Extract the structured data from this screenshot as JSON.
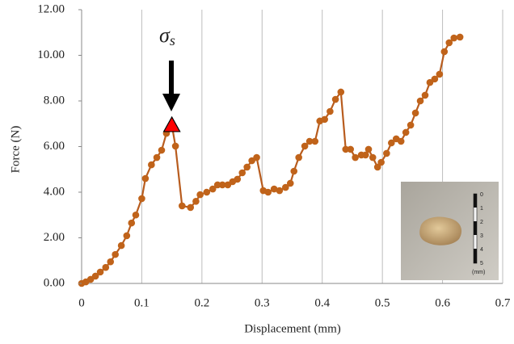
{
  "chart_data": {
    "type": "line",
    "x_label": "Displacement (mm)",
    "y_label": "Force (N)",
    "color": "#b85c1e",
    "marker_color": "#c0631a",
    "grid": "vertical",
    "xlim": [
      0,
      0.7
    ],
    "xticks": [
      0,
      0.1,
      0.2,
      0.3,
      0.4,
      0.5,
      0.6,
      0.7
    ],
    "ylim": [
      0,
      12
    ],
    "yticks": [
      {
        "value": 0,
        "label": "0.00"
      },
      {
        "value": 2,
        "label": "2.00"
      },
      {
        "value": 4,
        "label": "4.00"
      },
      {
        "value": 6,
        "label": "6.00"
      },
      {
        "value": 8,
        "label": "8.00"
      },
      {
        "value": 10,
        "label": "10.00"
      },
      {
        "value": 12,
        "label": "12.00"
      }
    ],
    "x": [
      0,
      0.007,
      0.015,
      0.023,
      0.031,
      0.04,
      0.048,
      0.056,
      0.066,
      0.075,
      0.083,
      0.09,
      0.1,
      0.106,
      0.116,
      0.125,
      0.133,
      0.141,
      0.15,
      0.156,
      0.167,
      0.181,
      0.19,
      0.197,
      0.208,
      0.218,
      0.226,
      0.234,
      0.243,
      0.251,
      0.259,
      0.267,
      0.275,
      0.283,
      0.291,
      0.302,
      0.31,
      0.32,
      0.329,
      0.339,
      0.347,
      0.353,
      0.361,
      0.371,
      0.379,
      0.388,
      0.396,
      0.404,
      0.413,
      0.422,
      0.431,
      0.439,
      0.447,
      0.455,
      0.465,
      0.472,
      0.477,
      0.484,
      0.492,
      0.498,
      0.507,
      0.515,
      0.523,
      0.531,
      0.539,
      0.547,
      0.555,
      0.563,
      0.571,
      0.579,
      0.587,
      0.595,
      0.603,
      0.611,
      0.619,
      0.629
    ],
    "values": [
      0,
      0.07,
      0.18,
      0.32,
      0.5,
      0.7,
      0.95,
      1.27,
      1.66,
      2.09,
      2.65,
      3.0,
      3.72,
      4.6,
      5.2,
      5.52,
      5.84,
      6.58,
      6.94,
      6.02,
      3.4,
      3.33,
      3.6,
      3.89,
      4.0,
      4.14,
      4.32,
      4.32,
      4.32,
      4.46,
      4.57,
      4.85,
      5.1,
      5.38,
      5.52,
      4.07,
      4.0,
      4.14,
      4.07,
      4.21,
      4.39,
      4.92,
      5.52,
      6.02,
      6.23,
      6.23,
      7.12,
      7.19,
      7.54,
      8.07,
      8.39,
      5.88,
      5.88,
      5.52,
      5.63,
      5.63,
      5.88,
      5.52,
      5.1,
      5.31,
      5.7,
      6.16,
      6.34,
      6.23,
      6.62,
      6.94,
      7.47,
      8.0,
      8.25,
      8.81,
      8.96,
      9.17,
      10.16,
      10.55,
      10.76,
      10.8
    ],
    "highlight_point": 18,
    "highlight_color": "#ff0000",
    "annotation": {
      "symbol": "σ",
      "subscript": "s"
    },
    "inset": {
      "scale_labels": [
        "0",
        "1",
        "2",
        "3",
        "4",
        "5"
      ],
      "unit": "(mm)"
    }
  }
}
